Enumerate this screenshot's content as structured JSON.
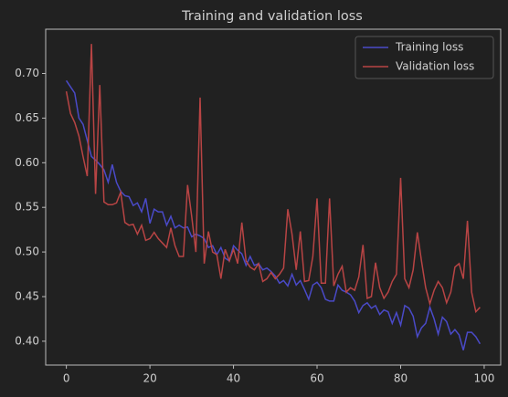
{
  "chart_data": {
    "type": "line",
    "title": "Training and validation loss",
    "x": [
      0,
      1,
      2,
      3,
      4,
      5,
      6,
      7,
      8,
      9,
      10,
      11,
      12,
      13,
      14,
      15,
      16,
      17,
      18,
      19,
      20,
      21,
      22,
      23,
      24,
      25,
      26,
      27,
      28,
      29,
      30,
      31,
      32,
      33,
      34,
      35,
      36,
      37,
      38,
      39,
      40,
      41,
      42,
      43,
      44,
      45,
      46,
      47,
      48,
      49,
      50,
      51,
      52,
      53,
      54,
      55,
      56,
      57,
      58,
      59,
      60,
      61,
      62,
      63,
      64,
      65,
      66,
      67,
      68,
      69,
      70,
      71,
      72,
      73,
      74,
      75,
      76,
      77,
      78,
      79,
      80,
      81,
      82,
      83,
      84,
      85,
      86,
      87,
      88,
      89,
      90,
      91,
      92,
      93,
      94,
      95,
      96,
      97,
      98,
      99
    ],
    "series": [
      {
        "name": "Training loss",
        "color": "#4a4ac8",
        "values": [
          0.692,
          0.685,
          0.678,
          0.65,
          0.643,
          0.625,
          0.607,
          0.603,
          0.598,
          0.592,
          0.578,
          0.598,
          0.578,
          0.568,
          0.563,
          0.562,
          0.552,
          0.555,
          0.545,
          0.56,
          0.532,
          0.548,
          0.545,
          0.545,
          0.53,
          0.54,
          0.527,
          0.53,
          0.527,
          0.528,
          0.517,
          0.52,
          0.518,
          0.515,
          0.505,
          0.507,
          0.497,
          0.505,
          0.493,
          0.49,
          0.507,
          0.502,
          0.498,
          0.485,
          0.495,
          0.485,
          0.487,
          0.48,
          0.482,
          0.478,
          0.473,
          0.465,
          0.468,
          0.462,
          0.475,
          0.463,
          0.468,
          0.458,
          0.447,
          0.463,
          0.466,
          0.46,
          0.447,
          0.445,
          0.445,
          0.463,
          0.457,
          0.455,
          0.452,
          0.445,
          0.432,
          0.44,
          0.443,
          0.437,
          0.44,
          0.43,
          0.435,
          0.433,
          0.42,
          0.432,
          0.418,
          0.44,
          0.437,
          0.428,
          0.405,
          0.415,
          0.42,
          0.438,
          0.425,
          0.408,
          0.427,
          0.422,
          0.408,
          0.413,
          0.407,
          0.39,
          0.41,
          0.41,
          0.405,
          0.397
        ]
      },
      {
        "name": "Validation loss",
        "color": "#b84444",
        "values": [
          0.68,
          0.655,
          0.645,
          0.63,
          0.607,
          0.585,
          0.733,
          0.565,
          0.687,
          0.556,
          0.553,
          0.553,
          0.555,
          0.567,
          0.533,
          0.53,
          0.531,
          0.52,
          0.53,
          0.513,
          0.515,
          0.522,
          0.515,
          0.51,
          0.505,
          0.527,
          0.507,
          0.495,
          0.495,
          0.575,
          0.54,
          0.5,
          0.673,
          0.487,
          0.523,
          0.5,
          0.497,
          0.47,
          0.503,
          0.49,
          0.503,
          0.487,
          0.533,
          0.49,
          0.483,
          0.48,
          0.487,
          0.467,
          0.47,
          0.477,
          0.47,
          0.475,
          0.482,
          0.548,
          0.52,
          0.48,
          0.523,
          0.467,
          0.468,
          0.495,
          0.56,
          0.465,
          0.465,
          0.56,
          0.462,
          0.475,
          0.484,
          0.455,
          0.46,
          0.457,
          0.472,
          0.508,
          0.448,
          0.45,
          0.488,
          0.46,
          0.448,
          0.455,
          0.467,
          0.475,
          0.583,
          0.47,
          0.46,
          0.48,
          0.522,
          0.49,
          0.46,
          0.442,
          0.457,
          0.467,
          0.46,
          0.443,
          0.455,
          0.483,
          0.487,
          0.47,
          0.535,
          0.455,
          0.433,
          0.438
        ]
      }
    ],
    "xlim": [
      -4.95,
      103.95
    ],
    "xticks": [
      0,
      20,
      40,
      60,
      80,
      100
    ],
    "ylim": [
      0.3733,
      0.7496
    ],
    "yticks": [
      {
        "value": 0.4,
        "label": "0.40"
      },
      {
        "value": 0.45,
        "label": "0.45"
      },
      {
        "value": 0.5,
        "label": "0.50"
      },
      {
        "value": 0.55,
        "label": "0.55"
      },
      {
        "value": 0.6,
        "label": "0.60"
      },
      {
        "value": 0.65,
        "label": "0.65"
      },
      {
        "value": 0.7,
        "label": "0.70"
      }
    ],
    "legend": "upper right"
  }
}
